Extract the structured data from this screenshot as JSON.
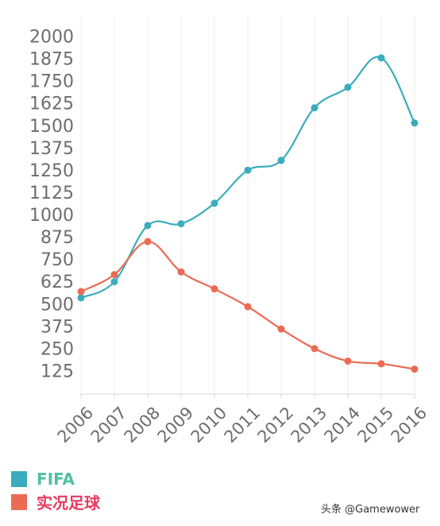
{
  "chart_data": {
    "type": "line",
    "x": [
      "2006",
      "2007",
      "2008",
      "2009",
      "2010",
      "2011",
      "2012",
      "2013",
      "2014",
      "2015",
      "2016"
    ],
    "y_ticks": [
      125,
      250,
      375,
      500,
      625,
      750,
      875,
      1000,
      1125,
      1250,
      1375,
      1500,
      1625,
      1750,
      1875,
      2000
    ],
    "ylim": [
      0,
      2000
    ],
    "grid": "vertical",
    "legend_position": "bottom-left",
    "series": [
      {
        "name": "FIFA",
        "color": "#3aacbd",
        "label_color": "#4fc1a3",
        "values": [
          540,
          630,
          945,
          955,
          1070,
          1255,
          1310,
          1605,
          1720,
          1885,
          1520
        ]
      },
      {
        "name": "实况足球",
        "color": "#ea6b53",
        "label_color": "#e83a60",
        "values": [
          575,
          670,
          855,
          685,
          590,
          490,
          365,
          255,
          185,
          170,
          140
        ]
      }
    ]
  },
  "watermark": "头条 @Gamewower"
}
